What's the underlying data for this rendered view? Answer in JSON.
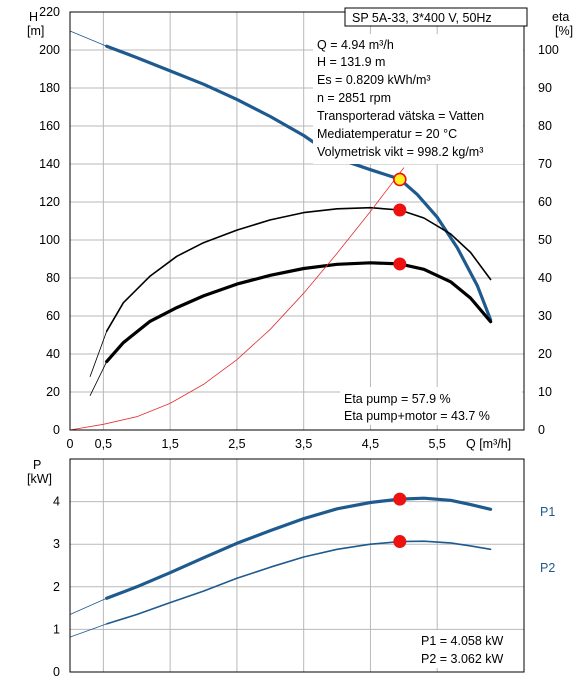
{
  "chart_data": [
    {
      "type": "line",
      "title": "SP 5A-33, 3*400 V, 50Hz",
      "x_axis": {
        "label": "Q [m³/h]",
        "range": [
          0,
          6.8
        ],
        "ticks": [
          0,
          0.5,
          1.5,
          2.5,
          3.5,
          4.5,
          5.5
        ],
        "tick_labels": [
          "0",
          "0,5",
          "1,5",
          "2,5",
          "3,5",
          "4,5",
          "5,5"
        ]
      },
      "y_left": {
        "label_top": "H",
        "label_unit": "[m]",
        "range": [
          0,
          220
        ],
        "ticks": [
          0,
          20,
          40,
          60,
          80,
          100,
          120,
          140,
          160,
          180,
          200,
          220
        ]
      },
      "y_right": {
        "label_top": "eta",
        "label_unit": "[%]",
        "range": [
          0,
          110
        ],
        "ticks": [
          0,
          10,
          20,
          30,
          40,
          50,
          60,
          70,
          80,
          90,
          100
        ]
      },
      "grid": true,
      "series": [
        {
          "axis": "left",
          "color": "#1f5a8f",
          "style": "thick",
          "x": [
            0.55,
            1.0,
            1.5,
            2.0,
            2.5,
            3.0,
            3.5,
            4.0,
            4.5,
            4.94,
            5.2,
            5.5,
            5.8,
            6.1,
            6.3
          ],
          "y": [
            202,
            196,
            189,
            182,
            174,
            165,
            155,
            143,
            137,
            132,
            124,
            112,
            96,
            76,
            58
          ]
        },
        {
          "axis": "right",
          "color": "#000000",
          "style": "thin",
          "x": [
            0.55,
            0.8,
            1.2,
            1.6,
            2.0,
            2.5,
            3.0,
            3.5,
            4.0,
            4.5,
            4.94,
            5.3,
            5.7,
            6.0,
            6.3
          ],
          "y": [
            26,
            33.5,
            40.5,
            45.7,
            49.3,
            52.6,
            55.3,
            57.2,
            58.2,
            58.5,
            57.9,
            55.8,
            51.6,
            46.7,
            39.6
          ]
        },
        {
          "axis": "right",
          "color": "#000000",
          "style": "thick",
          "x": [
            0.55,
            0.8,
            1.2,
            1.6,
            2.0,
            2.5,
            3.0,
            3.5,
            4.0,
            4.5,
            4.94,
            5.3,
            5.7,
            6.0,
            6.3
          ],
          "y": [
            18,
            23,
            28.6,
            32.2,
            35.3,
            38.4,
            40.7,
            42.5,
            43.6,
            44.0,
            43.7,
            42.3,
            39.0,
            34.7,
            28.5
          ]
        },
        {
          "axis": "left",
          "color": "#e03030",
          "style": "hairline",
          "x": [
            0,
            0.5,
            1.0,
            1.5,
            2.0,
            2.5,
            3.0,
            3.5,
            4.0,
            4.5,
            5.0
          ],
          "y": [
            0,
            3,
            7,
            14,
            24,
            37,
            53,
            72,
            93,
            115,
            138
          ]
        }
      ],
      "extrapolations": [
        {
          "axis": "left",
          "x": [
            0,
            0.55
          ],
          "y": [
            210,
            202
          ]
        },
        {
          "axis": "right",
          "x": [
            0.3,
            0.55
          ],
          "y": [
            14,
            26
          ]
        },
        {
          "axis": "right",
          "x": [
            0.3,
            0.55
          ],
          "y": [
            9,
            18
          ]
        }
      ],
      "operating_points": [
        {
          "x": 4.94,
          "y": 131.9,
          "axis": "left",
          "style": "yellow"
        },
        {
          "x": 4.94,
          "y": 57.9,
          "axis": "right",
          "style": "red"
        },
        {
          "x": 4.94,
          "y": 43.7,
          "axis": "right",
          "style": "red"
        }
      ],
      "info_lines": [
        "Q = 4.94 m³/h",
        "H = 131.9 m",
        "Es = 0.8209 kWh/m³",
        "n = 2851 rpm",
        "Transporterad vätska = Vatten",
        "Mediatemperatur = 20 °C",
        "Volymetrisk vikt = 998.2 kg/m³"
      ],
      "eta_lines": [
        "Eta pump = 57.9 %",
        "Eta pump+motor = 43.7 %"
      ]
    },
    {
      "type": "line",
      "x_axis": {
        "range": [
          0,
          6.8
        ],
        "ticks": [
          0,
          0.5,
          1.5,
          2.5,
          3.5,
          4.5,
          5.5
        ]
      },
      "y_left": {
        "label_top": "P",
        "label_unit": "[kW]",
        "range": [
          0,
          5
        ],
        "ticks": [
          0,
          1,
          2,
          3,
          4
        ]
      },
      "grid": true,
      "series": [
        {
          "name": "P1",
          "color": "#1f5a8f",
          "style": "thick",
          "x": [
            0.55,
            1.0,
            1.5,
            2.0,
            2.5,
            3.0,
            3.5,
            4.0,
            4.5,
            4.94,
            5.3,
            5.7,
            6.0,
            6.3
          ],
          "y": [
            1.73,
            2.0,
            2.33,
            2.68,
            3.02,
            3.32,
            3.6,
            3.83,
            3.98,
            4.058,
            4.08,
            4.03,
            3.93,
            3.82
          ]
        },
        {
          "name": "P2",
          "color": "#1f5a8f",
          "style": "thin",
          "x": [
            0.55,
            1.0,
            1.5,
            2.0,
            2.5,
            3.0,
            3.5,
            4.0,
            4.5,
            4.94,
            5.3,
            5.7,
            6.0,
            6.3
          ],
          "y": [
            1.13,
            1.35,
            1.63,
            1.9,
            2.2,
            2.46,
            2.7,
            2.88,
            3.0,
            3.062,
            3.07,
            3.03,
            2.96,
            2.88
          ]
        }
      ],
      "extrapolations": [
        {
          "x": [
            0,
            0.55
          ],
          "y": [
            1.35,
            1.73
          ]
        },
        {
          "x": [
            0,
            0.55
          ],
          "y": [
            0.82,
            1.13
          ]
        }
      ],
      "operating_points": [
        {
          "x": 4.94,
          "y": 4.058,
          "style": "red"
        },
        {
          "x": 4.94,
          "y": 3.062,
          "style": "red"
        }
      ],
      "labels": [
        "P1",
        "P2"
      ],
      "power_lines": [
        "P1 = 4.058 kW",
        "P2 = 3.062 kW"
      ]
    }
  ],
  "colors": {
    "pump_curve": "#1f5a8f",
    "red_point": "#ee1111",
    "yellow_point": "#ffee22",
    "grid": "#b9b9b9"
  }
}
